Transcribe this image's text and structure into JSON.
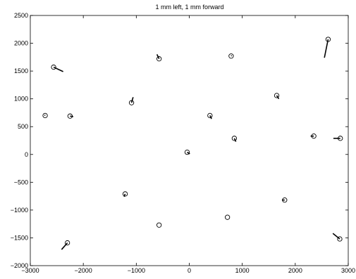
{
  "chart_data": {
    "type": "scatter",
    "title": "1 mm left, 1 mm forward",
    "xlabel": "",
    "ylabel": "",
    "xlim": [
      -3000,
      3000
    ],
    "ylim": [
      -2000,
      2500
    ],
    "xticks": [
      -3000,
      -2000,
      -1000,
      0,
      1000,
      2000,
      3000
    ],
    "yticks": [
      -2000,
      -1500,
      -1000,
      -500,
      0,
      500,
      1000,
      1500,
      2000,
      2500
    ],
    "grid": false,
    "legend": "none",
    "marker": "circle",
    "points": [
      {
        "x": -2560,
        "y": 1570,
        "u": 180,
        "v": -80
      },
      {
        "x": -2720,
        "y": 700,
        "u": -10,
        "v": 10
      },
      {
        "x": -2250,
        "y": 690,
        "u": 60,
        "v": -10
      },
      {
        "x": -1090,
        "y": 930,
        "u": 30,
        "v": 100
      },
      {
        "x": -570,
        "y": 1720,
        "u": -40,
        "v": 80
      },
      {
        "x": 790,
        "y": 1770,
        "u": 10,
        "v": 10
      },
      {
        "x": 2620,
        "y": 2070,
        "u": -70,
        "v": -330
      },
      {
        "x": 1650,
        "y": 1060,
        "u": 40,
        "v": -60
      },
      {
        "x": 390,
        "y": 700,
        "u": 30,
        "v": -60
      },
      {
        "x": 850,
        "y": 290,
        "u": 30,
        "v": -60
      },
      {
        "x": 2350,
        "y": 330,
        "u": -60,
        "v": 0
      },
      {
        "x": 2850,
        "y": 290,
        "u": -130,
        "v": 0
      },
      {
        "x": -40,
        "y": 40,
        "u": 50,
        "v": -30
      },
      {
        "x": -1210,
        "y": -710,
        "u": -20,
        "v": -50
      },
      {
        "x": 1800,
        "y": -820,
        "u": -50,
        "v": 0
      },
      {
        "x": -570,
        "y": -1270,
        "u": 0,
        "v": 0
      },
      {
        "x": 720,
        "y": -1130,
        "u": 0,
        "v": 0
      },
      {
        "x": -2300,
        "y": -1590,
        "u": -110,
        "v": -120
      },
      {
        "x": 2840,
        "y": -1520,
        "u": -130,
        "v": 100
      }
    ]
  }
}
